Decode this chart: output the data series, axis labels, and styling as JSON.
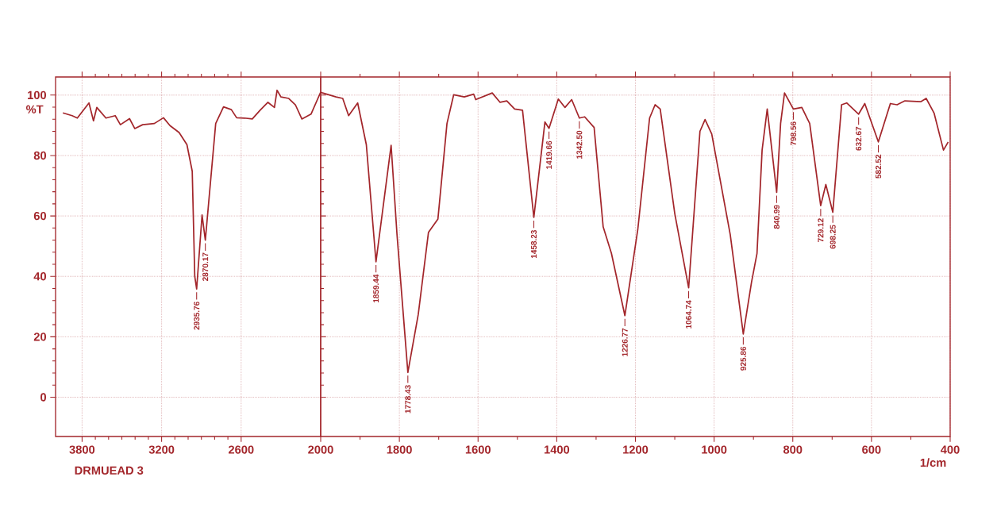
{
  "chart_data": [
    {
      "type": "line",
      "ylabel": "%T",
      "xlim": [
        4000,
        2000
      ],
      "xticks": [
        3800,
        3200,
        2600
      ],
      "ylim": [
        -13,
        106
      ],
      "yticks": [
        0,
        20,
        40,
        60,
        80,
        100
      ],
      "grid": true,
      "x": [
        3945,
        3875,
        3836,
        3748,
        3714,
        3689,
        3620,
        3550,
        3511,
        3442,
        3402,
        3343,
        3255,
        3186,
        3137,
        3068,
        3009,
        2969,
        2950,
        2935.76,
        2895,
        2870.17,
        2792,
        2733,
        2674,
        2634,
        2575,
        2516,
        2457,
        2398,
        2349,
        2329,
        2300,
        2241,
        2191,
        2142,
        2073,
        2000
      ],
      "series": [
        {
          "color": "#a3262b",
          "values": [
            94.1,
            93.2,
            92.4,
            97.4,
            91.5,
            95.9,
            92.4,
            93.2,
            90.2,
            92.2,
            88.9,
            90.2,
            90.6,
            92.5,
            89.9,
            87.6,
            83.6,
            74.8,
            40,
            35.8,
            60.3,
            52.0,
            90.6,
            96.1,
            95.2,
            92.5,
            92.4,
            92.1,
            95.0,
            97.6,
            95.9,
            101.6,
            99.4,
            98.9,
            96.8,
            92.1,
            93.7,
            101
          ]
        }
      ],
      "annotations": [
        {
          "text": "2935.76",
          "x": 2935.76,
          "y": 35.8
        },
        {
          "text": "2870.17",
          "x": 2870.17,
          "y": 52.0
        },
        "DRMUEAD 3"
      ]
    },
    {
      "type": "line",
      "xlabel": "1/cm",
      "xlim": [
        2000,
        400
      ],
      "xticks": [
        2000,
        1800,
        1600,
        1400,
        1200,
        1000,
        800,
        600,
        400
      ],
      "ylim": [
        -13,
        106
      ],
      "yticks": [
        0,
        20,
        40,
        60,
        80,
        100
      ],
      "grid": true,
      "tick_labels": "x",
      "x": [
        2000,
        1995,
        1961,
        1944,
        1929,
        1906,
        1884,
        1859.44,
        1821,
        1806,
        1778.43,
        1752,
        1726,
        1702,
        1679,
        1662,
        1635,
        1611,
        1606,
        1564,
        1544,
        1527,
        1507,
        1487,
        1458.23,
        1430,
        1419.66,
        1396,
        1379,
        1362,
        1342.5,
        1329,
        1305,
        1282,
        1261,
        1226.77,
        1194,
        1164,
        1150,
        1137,
        1100,
        1064.74,
        1036,
        1023,
        1006,
        959,
        925.86,
        905,
        891,
        878,
        865,
        840.99,
        831,
        821,
        798.56,
        777,
        757,
        729.12,
        716,
        698.25,
        676,
        663,
        632.67,
        617,
        582.52,
        552,
        535,
        515,
        475,
        461,
        441,
        417,
        405
      ],
      "series": [
        {
          "color": "#a3262b",
          "values": [
            101,
            100.7,
            99.4,
            98.9,
            93.2,
            97.4,
            83.6,
            44.8,
            83.4,
            53.8,
            8.2,
            27.4,
            54.6,
            59.0,
            90.6,
            100.1,
            99.4,
            100.3,
            98.5,
            100.7,
            97.6,
            98.1,
            95.4,
            95.0,
            59.5,
            91.1,
            89.0,
            98.7,
            95.9,
            98.5,
            92.4,
            92.8,
            89.3,
            56.4,
            47.6,
            27.0,
            55.5,
            92.4,
            96.8,
            95.4,
            60.8,
            36.2,
            88.0,
            91.9,
            87.1,
            53.8,
            20.9,
            38.0,
            47.6,
            81.8,
            95.4,
            67.8,
            90.6,
            100.7,
            95.4,
            95.9,
            90.6,
            63.4,
            70.4,
            61.2,
            96.8,
            97.4,
            93.7,
            97.2,
            84.5,
            97.2,
            96.8,
            98.1,
            97.8,
            98.9,
            94.1,
            81.8,
            84.5
          ]
        }
      ],
      "annotations": [
        {
          "text": "1859.44",
          "x": 1859.44,
          "y": 44.8
        },
        {
          "text": "1778.43",
          "x": 1778.43,
          "y": 8.2
        },
        {
          "text": "1458.23",
          "x": 1458.23,
          "y": 59.5
        },
        {
          "text": "1419.66",
          "x": 1419.66,
          "y": 89.0
        },
        {
          "text": "1342.50",
          "x": 1342.5,
          "y": 92.4
        },
        {
          "text": "1226.77",
          "x": 1226.77,
          "y": 27.0
        },
        {
          "text": "1064.74",
          "x": 1064.74,
          "y": 36.2
        },
        {
          "text": "925.86",
          "x": 925.86,
          "y": 20.9
        },
        {
          "text": "840.99",
          "x": 840.99,
          "y": 67.8
        },
        {
          "text": "798.56",
          "x": 798.56,
          "y": 95.4
        },
        {
          "text": "729.12",
          "x": 729.12,
          "y": 63.4
        },
        {
          "text": "698.25",
          "x": 698.25,
          "y": 61.2
        },
        {
          "text": "632.67",
          "x": 632.67,
          "y": 93.7
        },
        {
          "text": "582.52",
          "x": 582.52,
          "y": 84.5
        }
      ]
    }
  ]
}
